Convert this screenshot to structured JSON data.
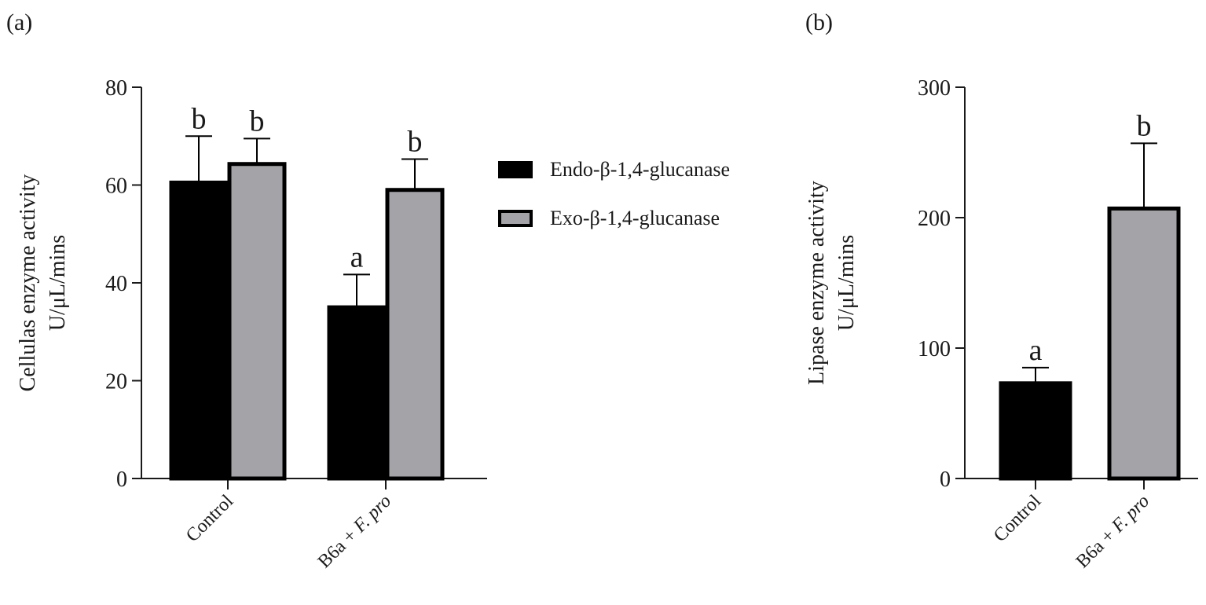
{
  "panels": [
    {
      "label": "(a)"
    },
    {
      "label": "(b)"
    }
  ],
  "colors": {
    "endo": "#000000",
    "exo": "#a3a3a8",
    "axis": "#1a1a1a"
  },
  "chart_data": [
    {
      "type": "bar",
      "categories": [
        "Control",
        "B6a + F. pro"
      ],
      "category_parts": [
        {
          "plain": "Control",
          "italic": ""
        },
        {
          "plain": "B6a + ",
          "italic": "F. pro"
        }
      ],
      "ylabel": [
        "Cellulas enzyme activity",
        "U/μL/mins"
      ],
      "ylim": [
        0,
        80
      ],
      "yticks": [
        0,
        20,
        40,
        60,
        80
      ],
      "series": [
        {
          "name": "Endo-β-1,4-glucanase",
          "color": "#000000",
          "values": [
            60.5,
            35
          ],
          "errors": [
            9.5,
            6.7
          ],
          "letters": [
            "b",
            "a"
          ]
        },
        {
          "name": "Exo-β-1,4-glucanase",
          "color": "#a3a3a8",
          "values": [
            64.3,
            59
          ],
          "errors": [
            5.2,
            6.3
          ],
          "letters": [
            "b",
            "b"
          ]
        }
      ],
      "legend": "right"
    },
    {
      "type": "bar",
      "categories": [
        "Control",
        "B6a + F. pro"
      ],
      "category_parts": [
        {
          "plain": "Control",
          "italic": ""
        },
        {
          "plain": "B6a + ",
          "italic": "F. pro"
        }
      ],
      "ylabel": [
        "Lipase enzyme activity",
        "U/μL/mins"
      ],
      "ylim": [
        0,
        300
      ],
      "yticks": [
        0,
        100,
        200,
        300
      ],
      "series": [
        {
          "name": "",
          "values": [
            73,
            207
          ],
          "errors": [
            12,
            50
          ],
          "letters": [
            "a",
            "b"
          ],
          "colors": [
            "#000000",
            "#a3a3a8"
          ]
        }
      ]
    }
  ]
}
